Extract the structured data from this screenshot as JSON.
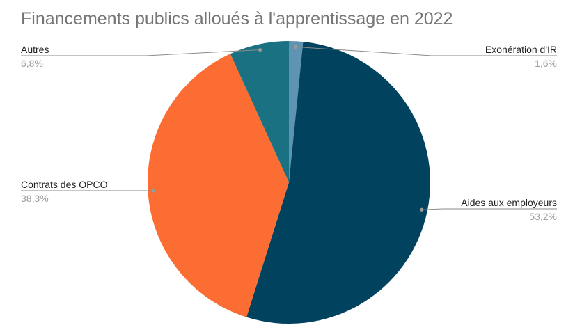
{
  "chart_data": {
    "type": "pie",
    "title": "Financements publics alloués à l'apprentissage en 2022",
    "slices": [
      {
        "label": "Exonération d'IR",
        "value": 1.6,
        "display": "1,6%",
        "color": "#5e93b1"
      },
      {
        "label": "Aides aux employeurs",
        "value": 53.2,
        "display": "53,2%",
        "color": "#01435f"
      },
      {
        "label": "Contrats des OPCO",
        "value": 38.3,
        "display": "38,3%",
        "color": "#fb6d32"
      },
      {
        "label": "Autres",
        "value": 6.8,
        "display": "6,8%",
        "color": "#1a7181"
      }
    ],
    "start_angle_deg": 0,
    "direction": "clockwise",
    "legend": "labels-outside-with-leaders"
  }
}
